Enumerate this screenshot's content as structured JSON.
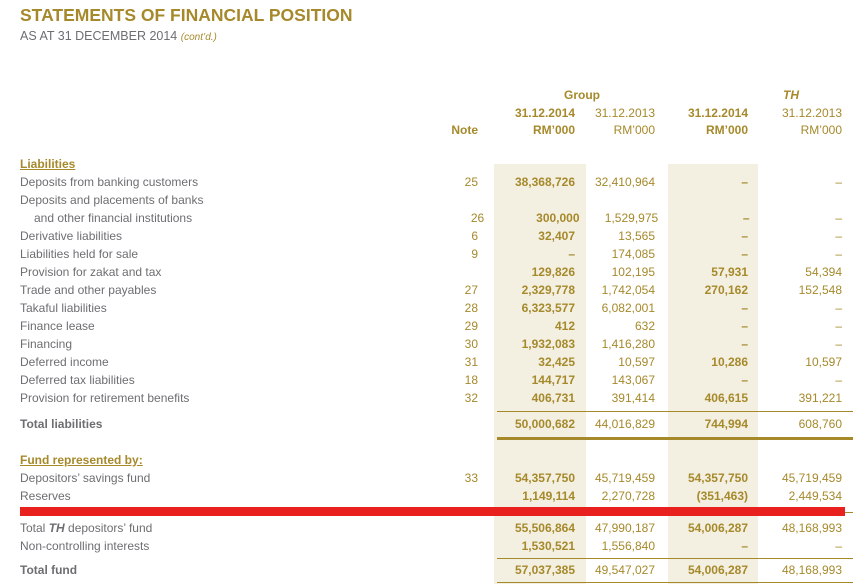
{
  "colors": {
    "gold": "#a6892b",
    "text_gray": "#6d6e71",
    "highlight_beige": "#f3f0e2",
    "annotation_red": "#e8201e",
    "background": "#ffffff"
  },
  "header": {
    "title": "STATEMENTS OF FINANCIAL POSITION",
    "subtitle": "AS AT 31 DECEMBER 2014",
    "contd": "(cont’d.)"
  },
  "table": {
    "column_groups": [
      {
        "label": "Group",
        "italic": false
      },
      {
        "label": "TH",
        "italic": true
      }
    ],
    "note_header": "Note",
    "columns": [
      {
        "date": "31.12.2014",
        "unit": "RM’000",
        "emphasis": true
      },
      {
        "date": "31.12.2013",
        "unit": "RM’000",
        "emphasis": false
      },
      {
        "date": "31.12.2014",
        "unit": "RM’000",
        "emphasis": true
      },
      {
        "date": "31.12.2013",
        "unit": "RM’000",
        "emphasis": false
      }
    ],
    "rows": [
      {
        "type": "heading",
        "label": "Liabilities"
      },
      {
        "type": "item",
        "label": "Deposits from banking customers",
        "note": "25",
        "values": [
          "38,368,726",
          "32,410,964",
          "–",
          "–"
        ]
      },
      {
        "type": "item",
        "label": "Deposits and placements of banks",
        "note": "",
        "values": [
          "",
          "",
          "",
          ""
        ]
      },
      {
        "type": "item",
        "label": "and other financial institutions",
        "indent": true,
        "note": "26",
        "values": [
          "300,000",
          "1,529,975",
          "–",
          "–"
        ]
      },
      {
        "type": "item",
        "label": "Derivative liabilities",
        "note": "6",
        "values": [
          "32,407",
          "13,565",
          "–",
          "–"
        ]
      },
      {
        "type": "item",
        "label": "Liabilities held for sale",
        "note": "9",
        "values": [
          "–",
          "174,085",
          "–",
          "–"
        ]
      },
      {
        "type": "item",
        "label": "Provision for zakat and tax",
        "note": "",
        "values": [
          "129,826",
          "102,195",
          "57,931",
          "54,394"
        ]
      },
      {
        "type": "item",
        "label": "Trade and other payables",
        "note": "27",
        "values": [
          "2,329,778",
          "1,742,054",
          "270,162",
          "152,548"
        ]
      },
      {
        "type": "item",
        "label": "Takaful liabilities",
        "note": "28",
        "values": [
          "6,323,577",
          "6,082,001",
          "–",
          "–"
        ]
      },
      {
        "type": "item",
        "label": "Finance lease",
        "note": "29",
        "values": [
          "412",
          "632",
          "–",
          "–"
        ]
      },
      {
        "type": "item",
        "label": "Financing",
        "note": "30",
        "values": [
          "1,932,083",
          "1,416,280",
          "–",
          "–"
        ]
      },
      {
        "type": "item",
        "label": "Deferred income",
        "note": "31",
        "values": [
          "32,425",
          "10,597",
          "10,286",
          "10,597"
        ]
      },
      {
        "type": "item",
        "label": "Deferred tax liabilities",
        "note": "18",
        "values": [
          "144,717",
          "143,067",
          "–",
          "–"
        ]
      },
      {
        "type": "item",
        "label": "Provision for retirement benefits",
        "note": "32",
        "values": [
          "406,731",
          "391,414",
          "406,615",
          "391,221"
        ]
      },
      {
        "type": "rule",
        "style": "thin",
        "h": 8
      },
      {
        "type": "total",
        "label": "Total liabilities",
        "note": "",
        "values": [
          "50,000,682",
          "44,016,829",
          "744,994",
          "608,760"
        ]
      },
      {
        "type": "rule",
        "style": "thick",
        "h": 10
      },
      {
        "type": "gap",
        "h": 8
      },
      {
        "type": "heading",
        "label": "Fund represented by:"
      },
      {
        "type": "item",
        "label": "Depositors’ savings fund",
        "note": "33",
        "values": [
          "54,357,750",
          "45,719,459",
          "54,357,750",
          "45,719,459"
        ]
      },
      {
        "type": "item",
        "label": "Reserves",
        "note": "",
        "values": [
          "1,149,114",
          "2,270,728",
          "(351,463)",
          "2,449,534"
        ]
      },
      {
        "type": "rule",
        "style": "red-annotation",
        "h": 14
      },
      {
        "type": "item",
        "label_parts": {
          "pre": "Total ",
          "em": "TH",
          "post": " depositors’ fund"
        },
        "note": "",
        "values": [
          "55,506,864",
          "47,990,187",
          "54,006,287",
          "48,168,993"
        ]
      },
      {
        "type": "item",
        "label": "Non-controlling interests",
        "note": "",
        "values": [
          "1,530,521",
          "1,556,840",
          "–",
          "–"
        ]
      },
      {
        "type": "rule",
        "style": "thin",
        "h": 6
      },
      {
        "type": "total",
        "label": "Total fund",
        "note": "",
        "values": [
          "57,037,385",
          "49,547,027",
          "54,006,287",
          "48,168,993"
        ]
      },
      {
        "type": "rule",
        "style": "thin",
        "h": 6
      }
    ]
  }
}
